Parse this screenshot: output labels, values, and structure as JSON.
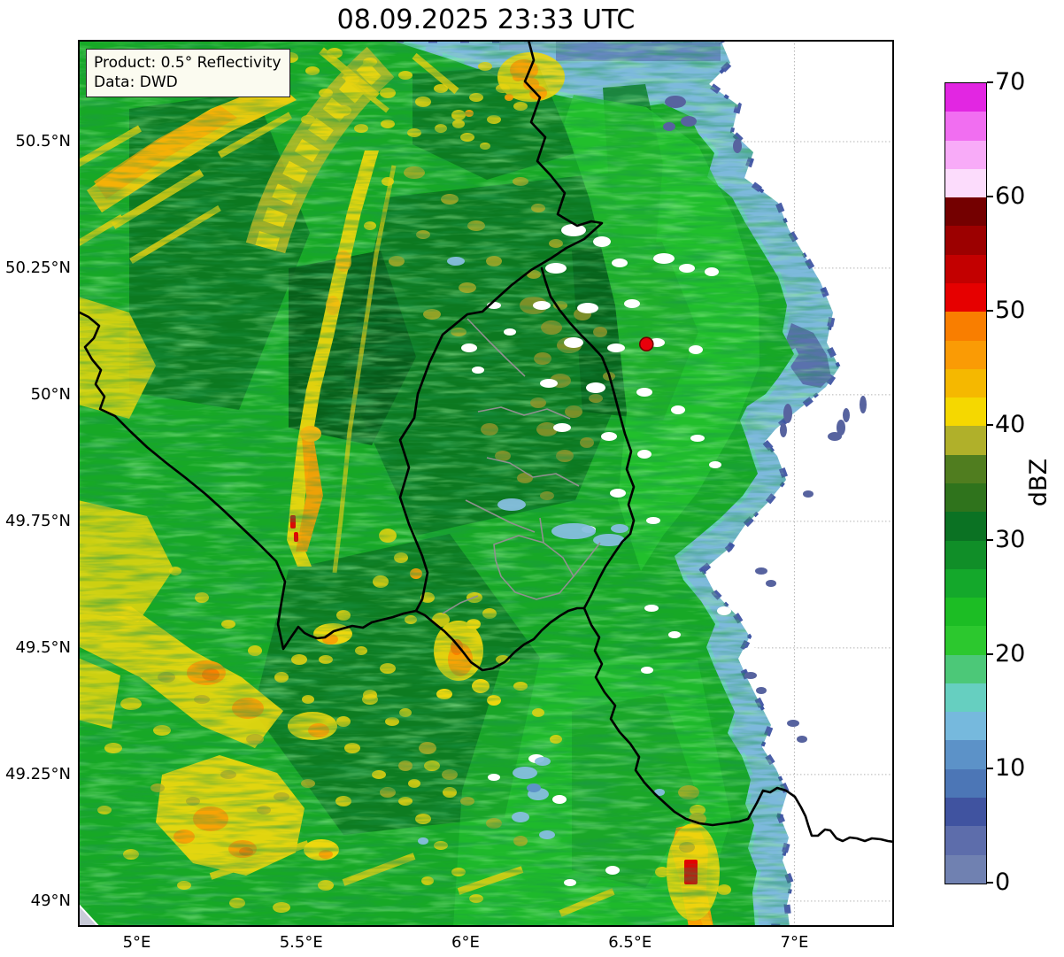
{
  "title": "08.09.2025 23:33 UTC",
  "info_box": {
    "line1": "Product: 0.5° Reflectivity",
    "line2": "Data: DWD"
  },
  "map": {
    "x_ticks": [
      {
        "label": "5°E",
        "lon": 5.0
      },
      {
        "label": "5.5°E",
        "lon": 5.5
      },
      {
        "label": "6°E",
        "lon": 6.0
      },
      {
        "label": "6.5°E",
        "lon": 6.5
      },
      {
        "label": "7°E",
        "lon": 7.0
      }
    ],
    "y_ticks": [
      {
        "label": "50.5°N",
        "lat": 50.5
      },
      {
        "label": "50.25°N",
        "lat": 50.25
      },
      {
        "label": "50°N",
        "lat": 50.0
      },
      {
        "label": "49.75°N",
        "lat": 49.75
      },
      {
        "label": "49.5°N",
        "lat": 49.5
      },
      {
        "label": "49.25°N",
        "lat": 49.25
      },
      {
        "label": "49°N",
        "lat": 49.0
      }
    ],
    "grid": true,
    "border_color_countries": "#000000",
    "border_color_districts": "#909090"
  },
  "marker": {
    "color": "#e8000b",
    "edge_color": "#700000"
  },
  "colorbar": {
    "unit": "dBZ",
    "min": 0,
    "max": 70,
    "tick_values": [
      0,
      10,
      20,
      30,
      40,
      50,
      60,
      70
    ],
    "segments": [
      {
        "from": 0,
        "to": 2.5,
        "color": "#7081b1"
      },
      {
        "from": 2.5,
        "to": 5,
        "color": "#5d6dab"
      },
      {
        "from": 5,
        "to": 7.5,
        "color": "#4053a0"
      },
      {
        "from": 7.5,
        "to": 10,
        "color": "#4c76b6"
      },
      {
        "from": 10,
        "to": 12.5,
        "color": "#5c92c8"
      },
      {
        "from": 12.5,
        "to": 15,
        "color": "#76b9dd"
      },
      {
        "from": 15,
        "to": 17.5,
        "color": "#66cfc0"
      },
      {
        "from": 17.5,
        "to": 20,
        "color": "#4cc878"
      },
      {
        "from": 20,
        "to": 22.5,
        "color": "#2cc82e"
      },
      {
        "from": 22.5,
        "to": 25,
        "color": "#1cbd24"
      },
      {
        "from": 25,
        "to": 27.5,
        "color": "#14a82b"
      },
      {
        "from": 27.5,
        "to": 30,
        "color": "#108e28"
      },
      {
        "from": 30,
        "to": 32.5,
        "color": "#0b7223"
      },
      {
        "from": 32.5,
        "to": 35,
        "color": "#2f731c"
      },
      {
        "from": 35,
        "to": 37.5,
        "color": "#507d1f"
      },
      {
        "from": 37.5,
        "to": 40,
        "color": "#b0b02a"
      },
      {
        "from": 40,
        "to": 42.5,
        "color": "#f5d800"
      },
      {
        "from": 42.5,
        "to": 45,
        "color": "#f5b800"
      },
      {
        "from": 45,
        "to": 47.5,
        "color": "#fa9b05"
      },
      {
        "from": 47.5,
        "to": 50,
        "color": "#f97e00"
      },
      {
        "from": 50,
        "to": 52.5,
        "color": "#e60000"
      },
      {
        "from": 52.5,
        "to": 55,
        "color": "#c30000"
      },
      {
        "from": 55,
        "to": 57.5,
        "color": "#9c0000"
      },
      {
        "from": 57.5,
        "to": 60,
        "color": "#740000"
      },
      {
        "from": 60,
        "to": 62.5,
        "color": "#fcdcfc"
      },
      {
        "from": 62.5,
        "to": 65,
        "color": "#f8abf8"
      },
      {
        "from": 65,
        "to": 67.5,
        "color": "#f16ef1"
      },
      {
        "from": 67.5,
        "to": 70,
        "color": "#e226e2"
      }
    ]
  },
  "chart_data": {
    "type": "heatmap",
    "title": "08.09.2025 23:33 UTC",
    "product": "0.5° Reflectivity",
    "source": "DWD",
    "unit": "dBZ",
    "value_range": [
      0,
      70
    ],
    "colorbar_step": 2.5,
    "x_axis_ticks_deg_east": [
      5,
      5.5,
      6,
      6.5,
      7
    ],
    "y_axis_ticks_deg_north": [
      50.5,
      50.25,
      50,
      49.75,
      49.5,
      49.25,
      49
    ],
    "radar_site_lonlat": [
      6.55,
      50.1
    ],
    "grid": true,
    "legend_position": "right",
    "description": "Radar reflectivity field: widespread 20-35 dBZ green echoes around the radar site, yellow-orange 40-50 dBZ arcs in the west/southwest with small >50 dBZ red cells, blue 0-15 dBZ fringe along the eastern echo edge, white no-echo region in the east/northeast"
  }
}
